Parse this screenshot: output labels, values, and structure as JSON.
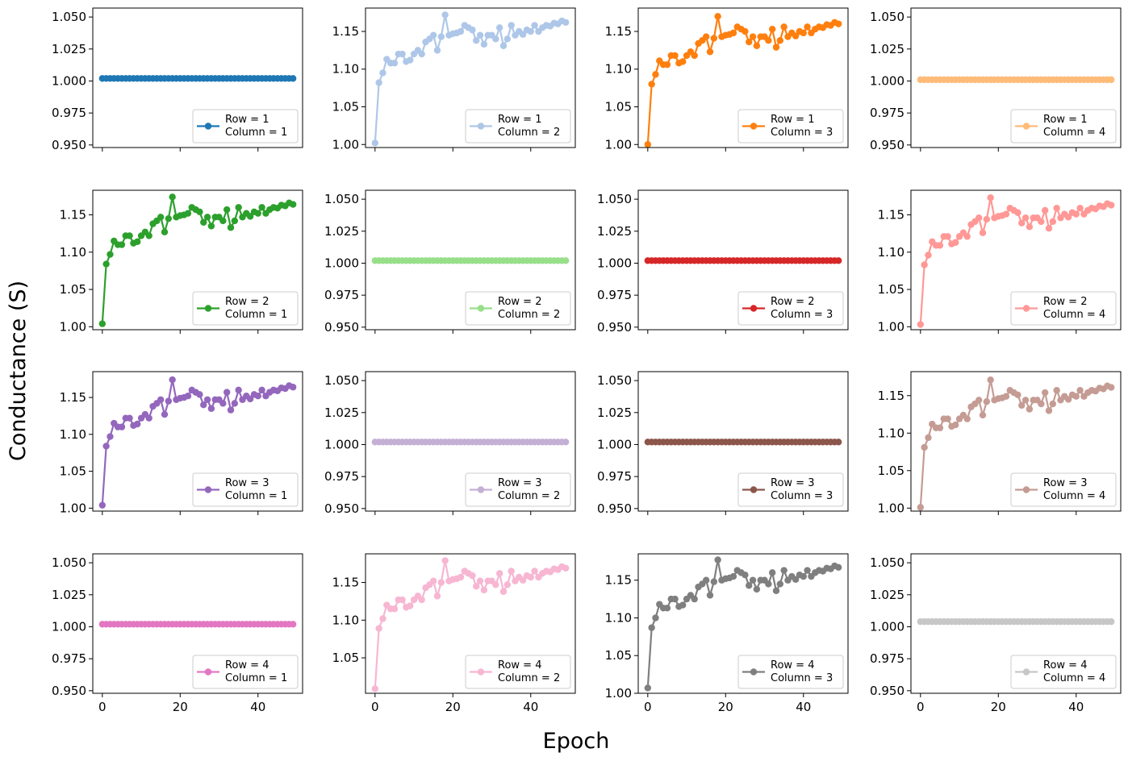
{
  "figure": {
    "xlabel": "Epoch",
    "ylabel": "Conductance (S)"
  },
  "chart_data": [
    {
      "type": "line",
      "row": 1,
      "column": 1,
      "legend": [
        "Row = 1",
        "Column = 1"
      ],
      "color": "#1f77b4",
      "flat": true,
      "ylim": [
        0.948,
        1.057
      ],
      "yticks": [
        "0.950",
        "0.975",
        "1.000",
        "1.025",
        "1.050"
      ],
      "yticks_values": [
        0.95,
        0.975,
        1.0,
        1.025,
        1.05
      ],
      "xlim": [
        -2.45,
        51.45
      ],
      "xticks": [
        0,
        20,
        40
      ],
      "x_start": 0,
      "x_end": 49,
      "values": [
        1.002
      ]
    },
    {
      "type": "line",
      "row": 1,
      "column": 2,
      "legend": [
        "Row = 1",
        "Column = 2"
      ],
      "color": "#aec7e8",
      "flat": false,
      "ylim": [
        0.996,
        1.181
      ],
      "yticks": [
        "1.00",
        "1.05",
        "1.10",
        "1.15"
      ],
      "yticks_values": [
        1.0,
        1.05,
        1.1,
        1.15
      ],
      "xlim": [
        -2.45,
        51.45
      ],
      "xticks": [
        0,
        20,
        40
      ],
      "x_start": 0,
      "x_end": 49,
      "offset": 0.0
    },
    {
      "type": "line",
      "row": 1,
      "column": 3,
      "legend": [
        "Row = 1",
        "Column = 3"
      ],
      "color": "#ff7f0e",
      "flat": false,
      "ylim": [
        0.996,
        1.181
      ],
      "yticks": [
        "1.00",
        "1.05",
        "1.10",
        "1.15"
      ],
      "yticks_values": [
        1.0,
        1.05,
        1.1,
        1.15
      ],
      "xlim": [
        -2.45,
        51.45
      ],
      "xticks": [
        0,
        20,
        40
      ],
      "x_start": 0,
      "x_end": 49,
      "offset": -0.002
    },
    {
      "type": "line",
      "row": 1,
      "column": 4,
      "legend": [
        "Row = 1",
        "Column = 4"
      ],
      "color": "#ffbb78",
      "flat": true,
      "ylim": [
        0.948,
        1.057
      ],
      "yticks": [
        "0.950",
        "0.975",
        "1.000",
        "1.025",
        "1.050"
      ],
      "yticks_values": [
        0.95,
        0.975,
        1.0,
        1.025,
        1.05
      ],
      "xlim": [
        -2.45,
        51.45
      ],
      "xticks": [
        0,
        20,
        40
      ],
      "x_start": 0,
      "x_end": 49,
      "values": [
        1.001
      ]
    },
    {
      "type": "line",
      "row": 2,
      "column": 1,
      "legend": [
        "Row = 2",
        "Column = 1"
      ],
      "color": "#2ca02c",
      "flat": false,
      "ylim": [
        0.996,
        1.183
      ],
      "yticks": [
        "1.00",
        "1.05",
        "1.10",
        "1.15"
      ],
      "yticks_values": [
        1.0,
        1.05,
        1.1,
        1.15
      ],
      "xlim": [
        -2.45,
        51.45
      ],
      "xticks": [
        0,
        20,
        40
      ],
      "x_start": 0,
      "x_end": 49,
      "offset": 0.002
    },
    {
      "type": "line",
      "row": 2,
      "column": 2,
      "legend": [
        "Row = 2",
        "Column = 2"
      ],
      "color": "#98df8a",
      "flat": true,
      "ylim": [
        0.948,
        1.057
      ],
      "yticks": [
        "0.950",
        "0.975",
        "1.000",
        "1.025",
        "1.050"
      ],
      "yticks_values": [
        0.95,
        0.975,
        1.0,
        1.025,
        1.05
      ],
      "xlim": [
        -2.45,
        51.45
      ],
      "xticks": [
        0,
        20,
        40
      ],
      "x_start": 0,
      "x_end": 49,
      "values": [
        1.002
      ]
    },
    {
      "type": "line",
      "row": 2,
      "column": 3,
      "legend": [
        "Row = 2",
        "Column = 3"
      ],
      "color": "#d62728",
      "flat": true,
      "ylim": [
        0.948,
        1.057
      ],
      "yticks": [
        "0.950",
        "0.975",
        "1.000",
        "1.025",
        "1.050"
      ],
      "yticks_values": [
        0.95,
        0.975,
        1.0,
        1.025,
        1.05
      ],
      "xlim": [
        -2.45,
        51.45
      ],
      "xticks": [
        0,
        20,
        40
      ],
      "x_start": 0,
      "x_end": 49,
      "values": [
        1.002
      ]
    },
    {
      "type": "line",
      "row": 2,
      "column": 4,
      "legend": [
        "Row = 2",
        "Column = 4"
      ],
      "color": "#ff9896",
      "flat": false,
      "ylim": [
        0.996,
        1.183
      ],
      "yticks": [
        "1.00",
        "1.05",
        "1.10",
        "1.15"
      ],
      "yticks_values": [
        1.0,
        1.05,
        1.1,
        1.15
      ],
      "xlim": [
        -2.45,
        51.45
      ],
      "xticks": [
        0,
        20,
        40
      ],
      "x_start": 0,
      "x_end": 49,
      "offset": 0.001
    },
    {
      "type": "line",
      "row": 3,
      "column": 1,
      "legend": [
        "Row = 3",
        "Column = 1"
      ],
      "color": "#9467bd",
      "flat": false,
      "ylim": [
        0.996,
        1.185
      ],
      "yticks": [
        "1.00",
        "1.05",
        "1.10",
        "1.15"
      ],
      "yticks_values": [
        1.0,
        1.05,
        1.1,
        1.15
      ],
      "xlim": [
        -2.45,
        51.45
      ],
      "xticks": [
        0,
        20,
        40
      ],
      "x_start": 0,
      "x_end": 49,
      "offset": 0.002
    },
    {
      "type": "line",
      "row": 3,
      "column": 2,
      "legend": [
        "Row = 3",
        "Column = 2"
      ],
      "color": "#c5b0d5",
      "flat": true,
      "ylim": [
        0.948,
        1.057
      ],
      "yticks": [
        "0.950",
        "0.975",
        "1.000",
        "1.025",
        "1.050"
      ],
      "yticks_values": [
        0.95,
        0.975,
        1.0,
        1.025,
        1.05
      ],
      "xlim": [
        -2.45,
        51.45
      ],
      "xticks": [
        0,
        20,
        40
      ],
      "x_start": 0,
      "x_end": 49,
      "values": [
        1.002
      ]
    },
    {
      "type": "line",
      "row": 3,
      "column": 3,
      "legend": [
        "Row = 3",
        "Column = 3"
      ],
      "color": "#8c564b",
      "flat": true,
      "ylim": [
        0.948,
        1.057
      ],
      "yticks": [
        "0.950",
        "0.975",
        "1.000",
        "1.025",
        "1.050"
      ],
      "yticks_values": [
        0.95,
        0.975,
        1.0,
        1.025,
        1.05
      ],
      "xlim": [
        -2.45,
        51.45
      ],
      "xticks": [
        0,
        20,
        40
      ],
      "x_start": 0,
      "x_end": 49,
      "values": [
        1.002
      ]
    },
    {
      "type": "line",
      "row": 3,
      "column": 4,
      "legend": [
        "Row = 3",
        "Column = 4"
      ],
      "color": "#c49c94",
      "flat": false,
      "ylim": [
        0.996,
        1.182
      ],
      "yticks": [
        "1.00",
        "1.05",
        "1.10",
        "1.15"
      ],
      "yticks_values": [
        1.0,
        1.05,
        1.1,
        1.15
      ],
      "xlim": [
        -2.45,
        51.45
      ],
      "xticks": [
        0,
        20,
        40
      ],
      "x_start": 0,
      "x_end": 49,
      "offset": -0.001
    },
    {
      "type": "line",
      "row": 4,
      "column": 1,
      "legend": [
        "Row = 4",
        "Column = 1"
      ],
      "color": "#e377c2",
      "flat": true,
      "ylim": [
        0.948,
        1.057
      ],
      "yticks": [
        "0.950",
        "0.975",
        "1.000",
        "1.025",
        "1.050"
      ],
      "yticks_values": [
        0.95,
        0.975,
        1.0,
        1.025,
        1.05
      ],
      "xlim": [
        -2.45,
        51.45
      ],
      "xticks": [
        0,
        20,
        40
      ],
      "x_start": 0,
      "x_end": 49,
      "values": [
        1.002
      ]
    },
    {
      "type": "line",
      "row": 4,
      "column": 2,
      "legend": [
        "Row = 4",
        "Column = 2"
      ],
      "color": "#f7b6d2",
      "flat": false,
      "ylim": [
        1.003,
        1.188
      ],
      "yticks": [
        "1.05",
        "1.10",
        "1.15"
      ],
      "yticks_values": [
        1.05,
        1.1,
        1.15
      ],
      "xlim": [
        -2.45,
        51.45
      ],
      "xticks": [
        0,
        20,
        40
      ],
      "x_start": 0,
      "x_end": 49,
      "offset": 0.007
    },
    {
      "type": "line",
      "row": 4,
      "column": 3,
      "legend": [
        "Row = 4",
        "Column = 3"
      ],
      "color": "#7f7f7f",
      "flat": false,
      "ylim": [
        1.0,
        1.185
      ],
      "yticks": [
        "1.00",
        "1.05",
        "1.10",
        "1.15"
      ],
      "yticks_values": [
        1.0,
        1.05,
        1.1,
        1.15
      ],
      "xlim": [
        -2.45,
        51.45
      ],
      "xticks": [
        0,
        20,
        40
      ],
      "x_start": 0,
      "x_end": 49,
      "offset": 0.005
    },
    {
      "type": "line",
      "row": 4,
      "column": 4,
      "legend": [
        "Row = 4",
        "Column = 4"
      ],
      "color": "#c7c7c7",
      "flat": true,
      "ylim": [
        0.948,
        1.057
      ],
      "yticks": [
        "0.950",
        "0.975",
        "1.000",
        "1.025",
        "1.050"
      ],
      "yticks_values": [
        0.95,
        0.975,
        1.0,
        1.025,
        1.05
      ],
      "xlim": [
        -2.45,
        51.45
      ],
      "xticks": [
        0,
        20,
        40
      ],
      "x_start": 0,
      "x_end": 49,
      "values": [
        1.004
      ]
    }
  ],
  "base_series": [
    1.002,
    1.082,
    1.095,
    1.113,
    1.108,
    1.108,
    1.12,
    1.12,
    1.11,
    1.112,
    1.12,
    1.125,
    1.12,
    1.136,
    1.14,
    1.145,
    1.125,
    1.143,
    1.172,
    1.145,
    1.147,
    1.148,
    1.15,
    1.158,
    1.155,
    1.152,
    1.138,
    1.145,
    1.133,
    1.145,
    1.145,
    1.14,
    1.155,
    1.131,
    1.14,
    1.158,
    1.145,
    1.15,
    1.146,
    1.152,
    1.15,
    1.158,
    1.15,
    1.155,
    1.158,
    1.157,
    1.161,
    1.16,
    1.164,
    1.162
  ]
}
